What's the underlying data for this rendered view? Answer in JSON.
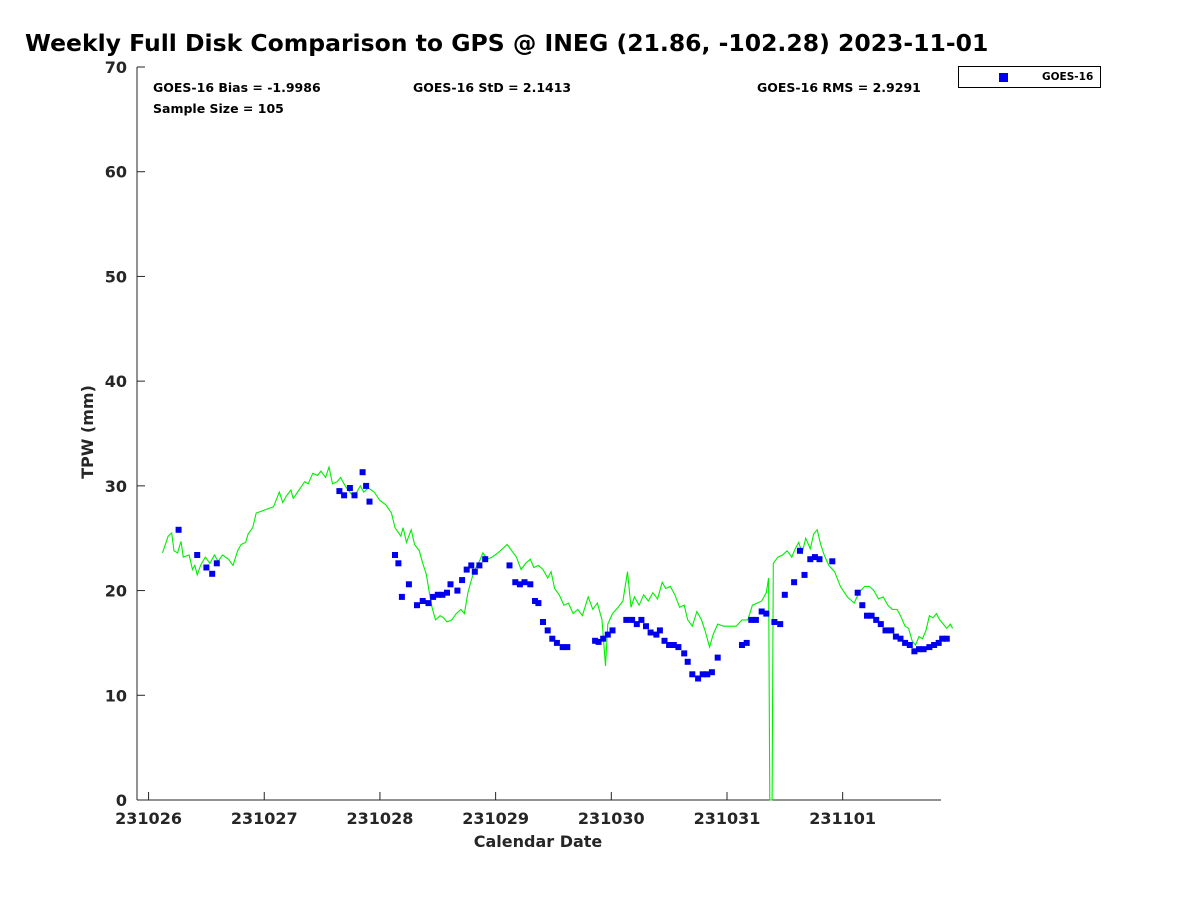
{
  "title": "Weekly Full Disk Comparison to GPS @ INEG (21.86, -102.28) 2023-11-01",
  "stats": {
    "bias": "GOES-16 Bias = -1.9986",
    "std": "GOES-16 StD = 2.1413",
    "rms": "GOES-16 RMS = 2.9291",
    "sample_size": "Sample Size = 105"
  },
  "legend": {
    "label": "GOES-16",
    "marker_color": "#0000ee"
  },
  "colors": {
    "goes": "#0000ee",
    "gps": "#00ee00",
    "axis": "#262626"
  },
  "chart_data": {
    "type": "scatter",
    "title": "Weekly Full Disk Comparison to GPS @ INEG (21.86, -102.28) 2023-11-01",
    "xlabel": "Calendar Date",
    "ylabel": "TPW (mm)",
    "xlim": [
      -0.1,
      6.85
    ],
    "ylim": [
      0,
      70
    ],
    "x_ticks": [
      0,
      1,
      2,
      3,
      4,
      5,
      6
    ],
    "x_tick_labels": [
      "231026",
      "231027",
      "231028",
      "231029",
      "231030",
      "231031",
      "231101"
    ],
    "y_ticks": [
      0,
      10,
      20,
      30,
      40,
      50,
      60,
      70
    ],
    "y_tick_labels": [
      "0",
      "10",
      "20",
      "30",
      "40",
      "50",
      "60",
      "70"
    ],
    "legend_position": "outside top-right",
    "grid": false,
    "series": [
      {
        "name": "GOES-16",
        "kind": "markers",
        "points": [
          [
            0.26,
            25.8
          ],
          [
            0.42,
            23.4
          ],
          [
            0.5,
            22.2
          ],
          [
            0.55,
            21.6
          ],
          [
            0.59,
            22.6
          ],
          [
            1.65,
            29.5
          ],
          [
            1.69,
            29.1
          ],
          [
            1.74,
            29.8
          ],
          [
            1.78,
            29.1
          ],
          [
            1.85,
            31.3
          ],
          [
            1.88,
            30
          ],
          [
            1.91,
            28.5
          ],
          [
            2.13,
            23.4
          ],
          [
            2.16,
            22.6
          ],
          [
            2.19,
            19.4
          ],
          [
            2.25,
            20.6
          ],
          [
            2.32,
            18.6
          ],
          [
            2.37,
            19
          ],
          [
            2.42,
            18.8
          ],
          [
            2.46,
            19.4
          ],
          [
            2.5,
            19.6
          ],
          [
            2.54,
            19.6
          ],
          [
            2.58,
            19.8
          ],
          [
            2.61,
            20.6
          ],
          [
            2.67,
            20
          ],
          [
            2.71,
            21
          ],
          [
            2.75,
            22
          ],
          [
            2.79,
            22.4
          ],
          [
            2.82,
            21.8
          ],
          [
            2.86,
            22.4
          ],
          [
            2.91,
            23
          ],
          [
            3.12,
            22.4
          ],
          [
            3.17,
            20.8
          ],
          [
            3.21,
            20.6
          ],
          [
            3.25,
            20.8
          ],
          [
            3.3,
            20.6
          ],
          [
            3.34,
            19
          ],
          [
            3.37,
            18.8
          ],
          [
            3.41,
            17
          ],
          [
            3.45,
            16.2
          ],
          [
            3.49,
            15.4
          ],
          [
            3.53,
            15
          ],
          [
            3.58,
            14.6
          ],
          [
            3.62,
            14.6
          ],
          [
            3.86,
            15.2
          ],
          [
            3.89,
            15.1
          ],
          [
            3.93,
            15.4
          ],
          [
            3.97,
            15.8
          ],
          [
            4.01,
            16.2
          ],
          [
            4.13,
            17.2
          ],
          [
            4.18,
            17.2
          ],
          [
            4.22,
            16.8
          ],
          [
            4.26,
            17.2
          ],
          [
            4.3,
            16.6
          ],
          [
            4.34,
            16
          ],
          [
            4.39,
            15.8
          ],
          [
            4.42,
            16.2
          ],
          [
            4.46,
            15.2
          ],
          [
            4.5,
            14.8
          ],
          [
            4.54,
            14.8
          ],
          [
            4.58,
            14.6
          ],
          [
            4.63,
            14
          ],
          [
            4.66,
            13.2
          ],
          [
            4.7,
            12
          ],
          [
            4.75,
            11.6
          ],
          [
            4.79,
            12
          ],
          [
            4.83,
            12
          ],
          [
            4.87,
            12.2
          ],
          [
            4.92,
            13.6
          ],
          [
            5.13,
            14.8
          ],
          [
            5.17,
            15
          ],
          [
            5.21,
            17.2
          ],
          [
            5.25,
            17.2
          ],
          [
            5.3,
            18
          ],
          [
            5.34,
            17.8
          ],
          [
            5.41,
            17
          ],
          [
            5.46,
            16.8
          ],
          [
            5.5,
            19.6
          ],
          [
            5.58,
            20.8
          ],
          [
            5.63,
            23.8
          ],
          [
            5.67,
            21.5
          ],
          [
            5.72,
            23
          ],
          [
            5.76,
            23.2
          ],
          [
            5.8,
            23
          ],
          [
            5.91,
            22.8
          ],
          [
            6.13,
            19.8
          ],
          [
            6.17,
            18.6
          ],
          [
            6.21,
            17.6
          ],
          [
            6.25,
            17.6
          ],
          [
            6.29,
            17.2
          ],
          [
            6.33,
            16.8
          ],
          [
            6.37,
            16.2
          ],
          [
            6.42,
            16.2
          ],
          [
            6.46,
            15.6
          ],
          [
            6.5,
            15.4
          ],
          [
            6.54,
            15
          ],
          [
            6.58,
            14.8
          ],
          [
            6.62,
            14.2
          ],
          [
            6.66,
            14.4
          ],
          [
            6.7,
            14.4
          ],
          [
            6.75,
            14.6
          ],
          [
            6.79,
            14.8
          ],
          [
            6.83,
            15
          ],
          [
            6.86,
            15.4
          ],
          [
            6.9,
            15.4
          ]
        ]
      },
      {
        "name": "GPS",
        "kind": "line",
        "points": [
          [
            0.12,
            23.6
          ],
          [
            0.17,
            25.2
          ],
          [
            0.2,
            25.5
          ],
          [
            0.22,
            23.8
          ],
          [
            0.25,
            23.6
          ],
          [
            0.28,
            24.7
          ],
          [
            0.3,
            23.2
          ],
          [
            0.35,
            23.4
          ],
          [
            0.38,
            22
          ],
          [
            0.4,
            22.4
          ],
          [
            0.42,
            21.5
          ],
          [
            0.45,
            22.4
          ],
          [
            0.49,
            23.2
          ],
          [
            0.53,
            22.6
          ],
          [
            0.57,
            23.4
          ],
          [
            0.6,
            22.8
          ],
          [
            0.64,
            23.4
          ],
          [
            0.69,
            23
          ],
          [
            0.73,
            22.4
          ],
          [
            0.77,
            23.8
          ],
          [
            0.8,
            24.4
          ],
          [
            0.84,
            24.6
          ],
          [
            0.86,
            25.4
          ],
          [
            0.9,
            26
          ],
          [
            0.93,
            27.4
          ],
          [
            0.98,
            27.6
          ],
          [
            1.03,
            27.8
          ],
          [
            1.08,
            28
          ],
          [
            1.13,
            29.4
          ],
          [
            1.16,
            28.4
          ],
          [
            1.19,
            29
          ],
          [
            1.23,
            29.6
          ],
          [
            1.25,
            28.8
          ],
          [
            1.3,
            29.6
          ],
          [
            1.35,
            30.4
          ],
          [
            1.38,
            30.2
          ],
          [
            1.42,
            31.2
          ],
          [
            1.46,
            31
          ],
          [
            1.49,
            31.4
          ],
          [
            1.53,
            30.8
          ],
          [
            1.56,
            31.8
          ],
          [
            1.59,
            30.2
          ],
          [
            1.63,
            30.4
          ],
          [
            1.66,
            30.8
          ],
          [
            1.7,
            30
          ],
          [
            1.74,
            29.4
          ],
          [
            1.77,
            29
          ],
          [
            1.8,
            29.4
          ],
          [
            1.83,
            30
          ],
          [
            1.86,
            29.4
          ],
          [
            1.9,
            29.8
          ],
          [
            1.95,
            29.4
          ],
          [
            2.0,
            28.6
          ],
          [
            2.05,
            28.2
          ],
          [
            2.1,
            27.4
          ],
          [
            2.13,
            26
          ],
          [
            2.18,
            25.2
          ],
          [
            2.2,
            26
          ],
          [
            2.23,
            24.6
          ],
          [
            2.27,
            25.8
          ],
          [
            2.3,
            24.4
          ],
          [
            2.34,
            23.8
          ],
          [
            2.37,
            22.6
          ],
          [
            2.4,
            21.6
          ],
          [
            2.43,
            19.6
          ],
          [
            2.45,
            18.4
          ],
          [
            2.48,
            17.2
          ],
          [
            2.52,
            17.6
          ],
          [
            2.55,
            17.4
          ],
          [
            2.58,
            17
          ],
          [
            2.62,
            17.2
          ],
          [
            2.66,
            17.8
          ],
          [
            2.7,
            18.2
          ],
          [
            2.73,
            17.8
          ],
          [
            2.76,
            19.8
          ],
          [
            2.79,
            21
          ],
          [
            2.82,
            22
          ],
          [
            2.86,
            22.8
          ],
          [
            2.89,
            23.6
          ],
          [
            2.93,
            23
          ],
          [
            2.97,
            23.2
          ],
          [
            3.02,
            23.6
          ],
          [
            3.06,
            24
          ],
          [
            3.1,
            24.4
          ],
          [
            3.14,
            23.8
          ],
          [
            3.18,
            23.2
          ],
          [
            3.22,
            22
          ],
          [
            3.26,
            22.6
          ],
          [
            3.3,
            23
          ],
          [
            3.33,
            22.2
          ],
          [
            3.37,
            22.4
          ],
          [
            3.41,
            22
          ],
          [
            3.45,
            21.2
          ],
          [
            3.48,
            21.8
          ],
          [
            3.51,
            20.2
          ],
          [
            3.55,
            19.6
          ],
          [
            3.59,
            18.6
          ],
          [
            3.63,
            18.8
          ],
          [
            3.67,
            17.8
          ],
          [
            3.71,
            18.2
          ],
          [
            3.75,
            17.6
          ],
          [
            3.8,
            19.4
          ],
          [
            3.84,
            18.2
          ],
          [
            3.88,
            18.8
          ],
          [
            3.92,
            17.2
          ],
          [
            3.95,
            12.8
          ],
          [
            3.97,
            16.8
          ],
          [
            4.01,
            17.8
          ],
          [
            4.06,
            18.4
          ],
          [
            4.1,
            19
          ],
          [
            4.14,
            21.8
          ],
          [
            4.17,
            18.4
          ],
          [
            4.2,
            19.4
          ],
          [
            4.24,
            18.6
          ],
          [
            4.28,
            19.6
          ],
          [
            4.32,
            19
          ],
          [
            4.36,
            19.8
          ],
          [
            4.4,
            19.2
          ],
          [
            4.44,
            20.8
          ],
          [
            4.47,
            20.2
          ],
          [
            4.51,
            20.4
          ],
          [
            4.55,
            19.6
          ],
          [
            4.59,
            18.4
          ],
          [
            4.63,
            18.6
          ],
          [
            4.66,
            17.2
          ],
          [
            4.7,
            16.6
          ],
          [
            4.74,
            18
          ],
          [
            4.78,
            17.2
          ],
          [
            4.81,
            16.2
          ],
          [
            4.85,
            14.6
          ],
          [
            4.88,
            15.8
          ],
          [
            4.92,
            16.8
          ],
          [
            4.97,
            16.6
          ],
          [
            5.03,
            16.6
          ],
          [
            5.08,
            16.6
          ],
          [
            5.13,
            17.2
          ],
          [
            5.18,
            17.2
          ],
          [
            5.22,
            18.6
          ],
          [
            5.26,
            18.8
          ],
          [
            5.3,
            19
          ],
          [
            5.34,
            19.8
          ],
          [
            5.36,
            21.2
          ],
          [
            5.37,
            0
          ],
          [
            5.39,
            0
          ],
          [
            5.4,
            22.6
          ],
          [
            5.44,
            23.2
          ],
          [
            5.48,
            23.4
          ],
          [
            5.52,
            23.8
          ],
          [
            5.56,
            23.2
          ],
          [
            5.59,
            24
          ],
          [
            5.62,
            24.6
          ],
          [
            5.65,
            23.6
          ],
          [
            5.68,
            25
          ],
          [
            5.72,
            24
          ],
          [
            5.75,
            25.4
          ],
          [
            5.78,
            25.8
          ],
          [
            5.81,
            24.4
          ],
          [
            5.84,
            23.4
          ],
          [
            5.88,
            22.4
          ],
          [
            5.93,
            21.8
          ],
          [
            5.98,
            20.4
          ],
          [
            6.04,
            19.4
          ],
          [
            6.1,
            18.8
          ],
          [
            6.14,
            19.8
          ],
          [
            6.19,
            20.4
          ],
          [
            6.23,
            20.4
          ],
          [
            6.27,
            20
          ],
          [
            6.31,
            19.2
          ],
          [
            6.35,
            19.4
          ],
          [
            6.39,
            18.6
          ],
          [
            6.43,
            18.2
          ],
          [
            6.47,
            18.2
          ],
          [
            6.5,
            17.6
          ],
          [
            6.54,
            16.6
          ],
          [
            6.57,
            16.4
          ],
          [
            6.6,
            15.2
          ],
          [
            6.63,
            14.8
          ],
          [
            6.66,
            15.6
          ],
          [
            6.69,
            15.4
          ],
          [
            6.72,
            16.2
          ],
          [
            6.75,
            17.6
          ],
          [
            6.78,
            17.4
          ],
          [
            6.81,
            17.8
          ],
          [
            6.84,
            17.2
          ],
          [
            6.87,
            16.8
          ],
          [
            6.9,
            16.4
          ],
          [
            6.93,
            16.8
          ],
          [
            6.95,
            16.4
          ]
        ]
      }
    ]
  }
}
